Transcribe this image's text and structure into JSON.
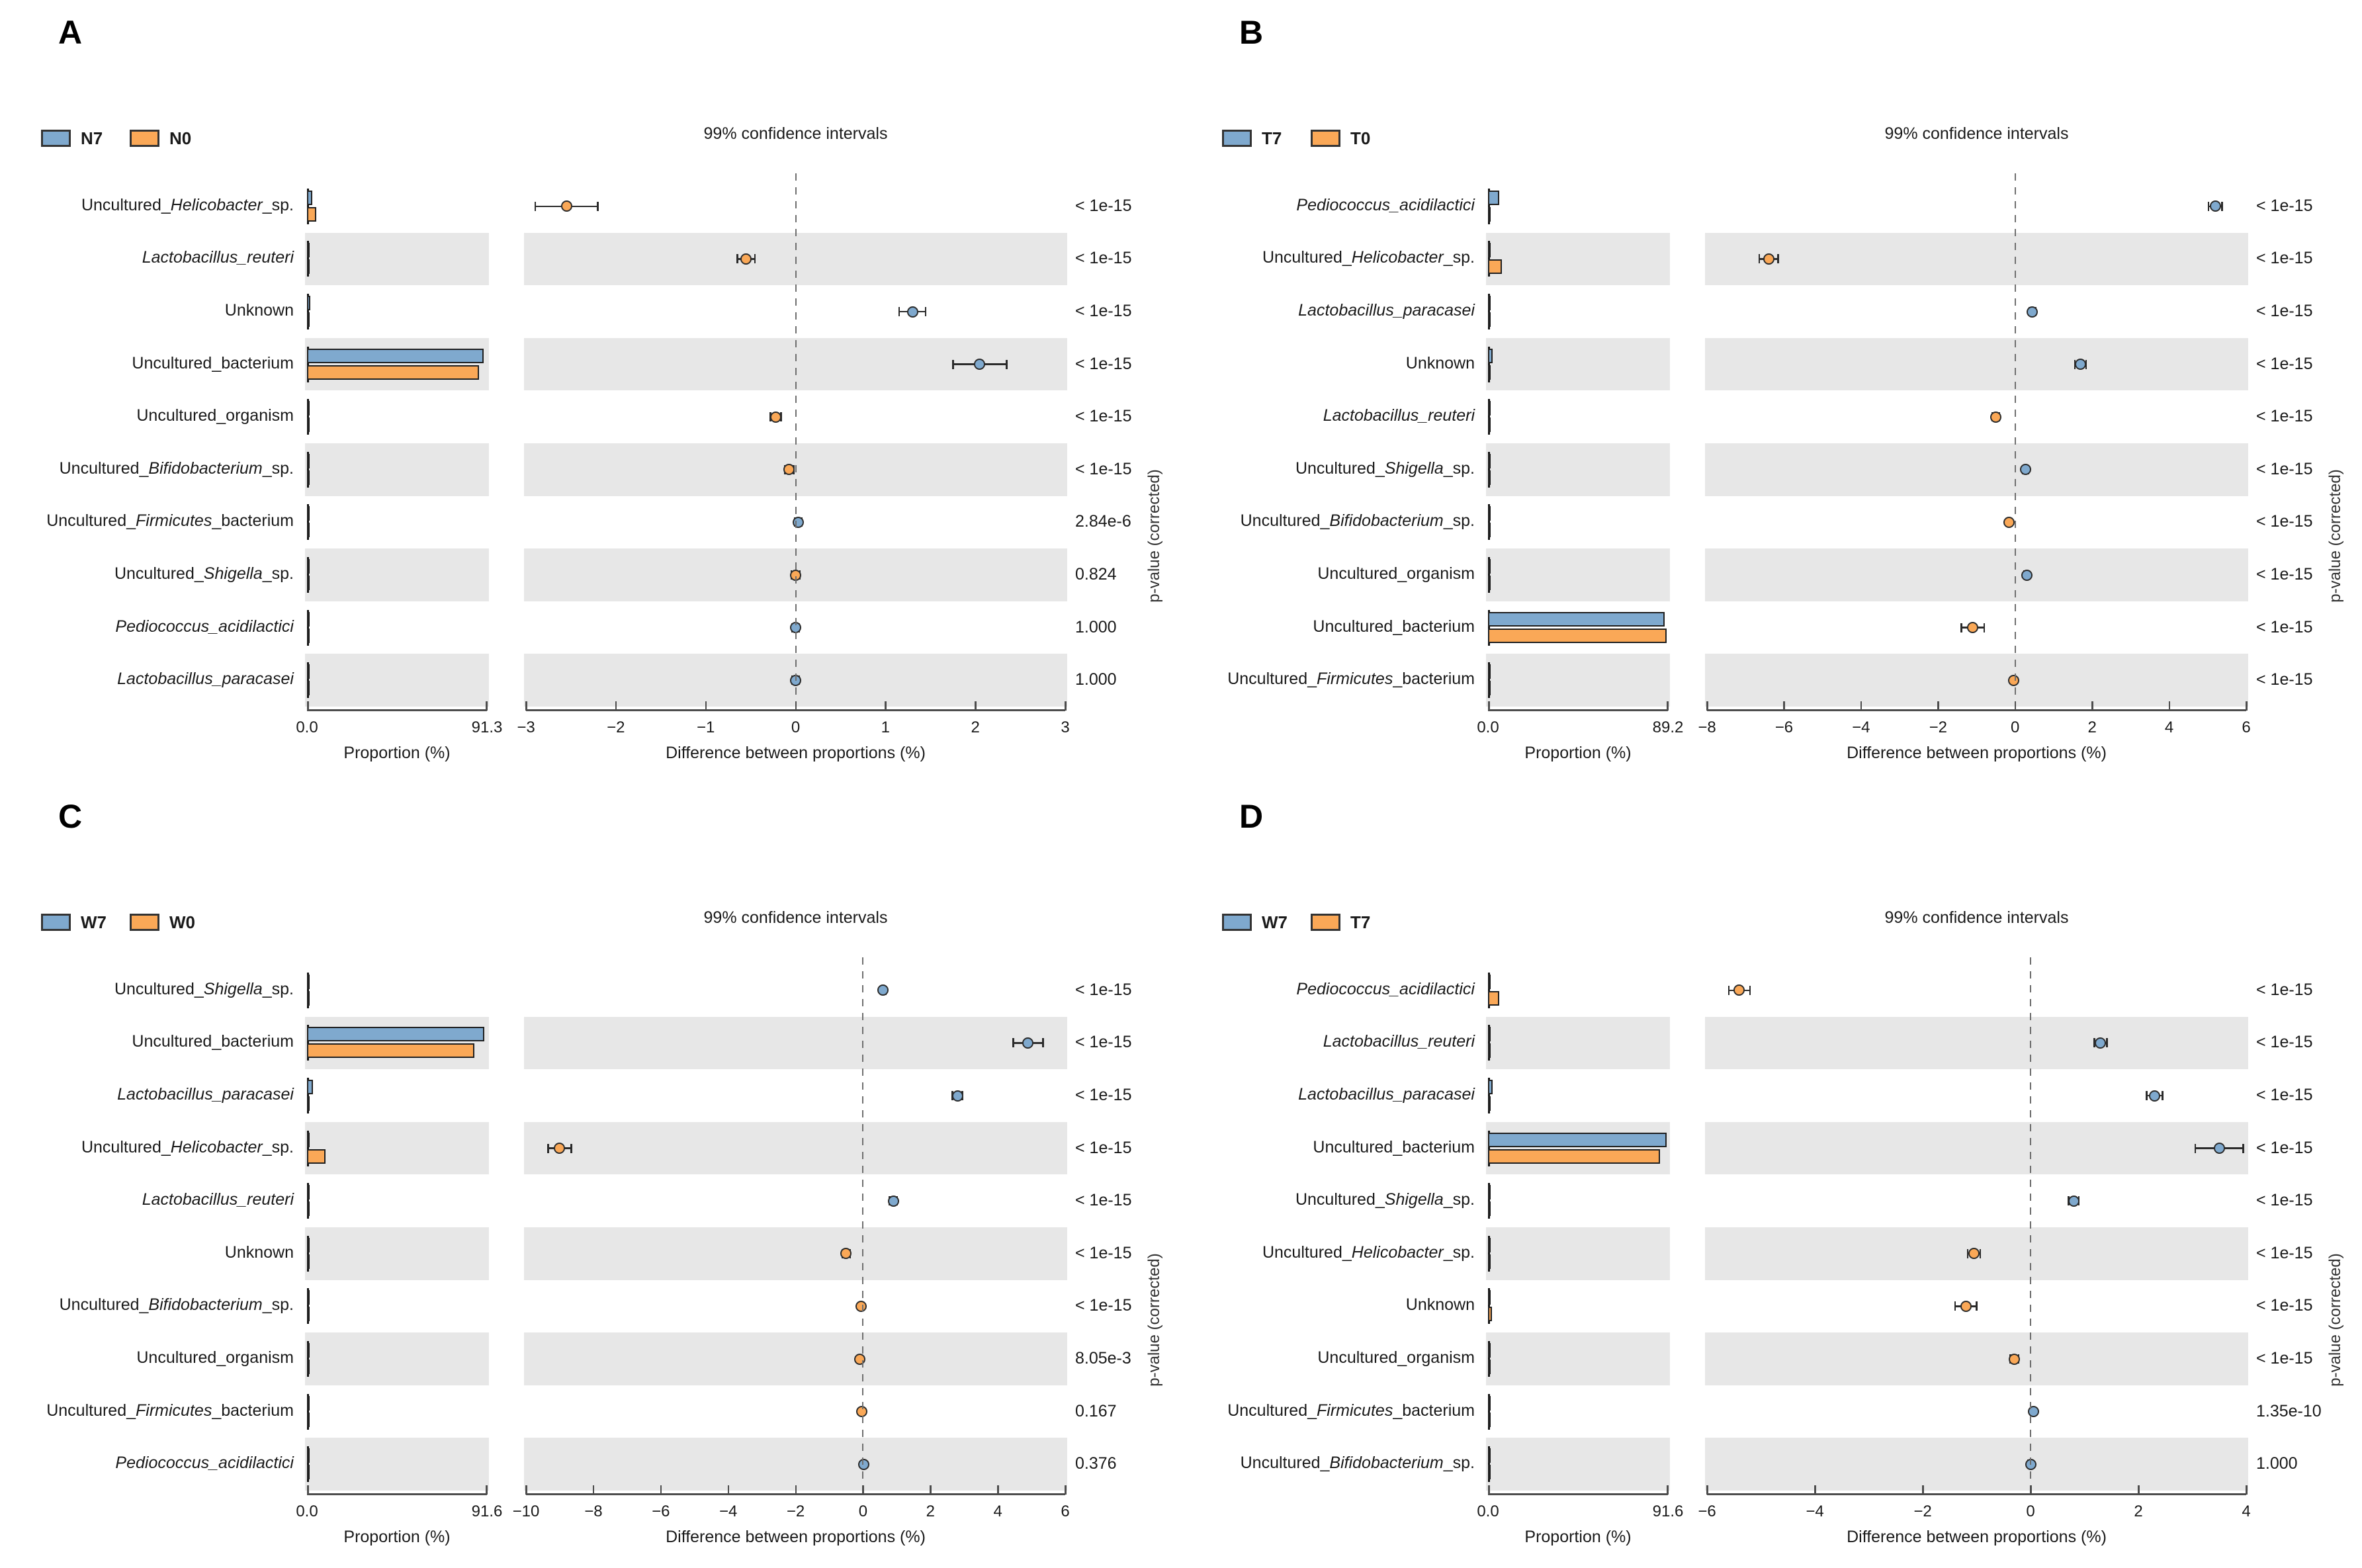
{
  "colors": {
    "blue": "#7FA9CE",
    "orange": "#FAA857",
    "band": "#E7E7E7",
    "axis": "#4D4D4D",
    "text": "#1A1A1A"
  },
  "chart_data": [
    {
      "type": "extended-error-bar",
      "panel_label": "A",
      "legend": [
        "N7",
        "N0"
      ],
      "ci_title": "99% confidence intervals",
      "prop_axis": {
        "ticks": [
          "0.0",
          "91.3"
        ],
        "max": 91.3,
        "title": "Proportion (%)"
      },
      "diff_axis": {
        "min": -3,
        "max": 3,
        "ticks": [
          -3,
          -2,
          -1,
          0,
          1,
          2,
          3
        ],
        "title": "Difference between proportions (%)"
      },
      "right_axis_label": "p-value (corrected)",
      "rows": [
        {
          "taxon": [
            [
              "Uncultured_",
              false
            ],
            [
              "Helicobacter",
              true
            ],
            [
              "_sp.",
              false
            ]
          ],
          "proportions": [
            2.8,
            4.6
          ],
          "diff": -2.55,
          "ci": 0.35,
          "dot": "orange",
          "p": "< 1e-15"
        },
        {
          "taxon": [
            [
              "Lactobacillus_reuteri",
              true
            ]
          ],
          "proportions": [
            0.4,
            0.9
          ],
          "diff": -0.55,
          "ci": 0.1,
          "dot": "orange",
          "p": "< 1e-15"
        },
        {
          "taxon": [
            [
              "Unknown",
              false
            ]
          ],
          "proportions": [
            1.6,
            0.35
          ],
          "diff": 1.3,
          "ci": 0.15,
          "dot": "blue",
          "p": "< 1e-15"
        },
        {
          "taxon": [
            [
              "Uncultured_bacterium",
              false
            ]
          ],
          "proportions": [
            89.5,
            87.4
          ],
          "diff": 2.05,
          "ci": 0.3,
          "dot": "blue",
          "p": "< 1e-15"
        },
        {
          "taxon": [
            [
              "Uncultured_organism",
              false
            ]
          ],
          "proportions": [
            0.3,
            0.5
          ],
          "diff": -0.22,
          "ci": 0.06,
          "dot": "orange",
          "p": "< 1e-15"
        },
        {
          "taxon": [
            [
              "Uncultured_",
              false
            ],
            [
              "Bifidobacterium",
              true
            ],
            [
              "_sp.",
              false
            ]
          ],
          "proportions": [
            0.25,
            0.32
          ],
          "diff": -0.07,
          "ci": 0.05,
          "dot": "orange",
          "p": "< 1e-15"
        },
        {
          "taxon": [
            [
              "Uncultured_",
              false
            ],
            [
              "Firmicutes",
              true
            ],
            [
              "_bacterium",
              false
            ]
          ],
          "proportions": [
            0.3,
            0.27
          ],
          "diff": 0.03,
          "ci": 0.04,
          "dot": "blue",
          "p": "2.84e-6"
        },
        {
          "taxon": [
            [
              "Uncultured_",
              false
            ],
            [
              "Shigella",
              true
            ],
            [
              "_sp.",
              false
            ]
          ],
          "proportions": [
            0.35,
            0.35
          ],
          "diff": 0.0,
          "ci": 0.05,
          "dot": "orange",
          "p": "0.824"
        },
        {
          "taxon": [
            [
              "Pediococcus_acidilactici",
              true
            ]
          ],
          "proportions": [
            0.3,
            0.3
          ],
          "diff": 0.0,
          "ci": 0.04,
          "dot": "blue",
          "p": "1.000"
        },
        {
          "taxon": [
            [
              "Lactobacillus_paracasei",
              true
            ]
          ],
          "proportions": [
            0.35,
            0.33
          ],
          "diff": 0.0,
          "ci": 0.04,
          "dot": "blue",
          "p": "1.000"
        }
      ]
    },
    {
      "type": "extended-error-bar",
      "panel_label": "B",
      "legend": [
        "T7",
        "T0"
      ],
      "ci_title": "99% confidence intervals",
      "prop_axis": {
        "ticks": [
          "0.0",
          "89.2"
        ],
        "max": 89.2,
        "title": "Proportion (%)"
      },
      "diff_axis": {
        "min": -8,
        "max": 6,
        "ticks": [
          -8,
          -6,
          -4,
          -2,
          0,
          2,
          4,
          6
        ],
        "title": "Difference between proportions (%)"
      },
      "right_axis_label": "p-value (corrected)",
      "rows": [
        {
          "taxon": [
            [
              "Pediococcus_acidilactici",
              true
            ]
          ],
          "proportions": [
            5.5,
            0.3
          ],
          "diff": 5.2,
          "ci": 0.18,
          "dot": "blue",
          "p": "< 1e-15"
        },
        {
          "taxon": [
            [
              "Uncultured_",
              false
            ],
            [
              "Helicobacter",
              true
            ],
            [
              "_sp.",
              false
            ]
          ],
          "proportions": [
            0.6,
            7.0
          ],
          "diff": -6.4,
          "ci": 0.25,
          "dot": "orange",
          "p": "< 1e-15"
        },
        {
          "taxon": [
            [
              "Lactobacillus_paracasei",
              true
            ]
          ],
          "proportions": [
            0.6,
            0.15
          ],
          "diff": 0.45,
          "ci": 0.08,
          "dot": "blue",
          "p": "< 1e-15"
        },
        {
          "taxon": [
            [
              "Unknown",
              false
            ]
          ],
          "proportions": [
            2.3,
            0.6
          ],
          "diff": 1.7,
          "ci": 0.15,
          "dot": "blue",
          "p": "< 1e-15"
        },
        {
          "taxon": [
            [
              "Lactobacillus_reuteri",
              true
            ]
          ],
          "proportions": [
            0.3,
            0.8
          ],
          "diff": -0.5,
          "ci": 0.1,
          "dot": "orange",
          "p": "< 1e-15"
        },
        {
          "taxon": [
            [
              "Uncultured_",
              false
            ],
            [
              "Shigella",
              true
            ],
            [
              "_sp.",
              false
            ]
          ],
          "proportions": [
            0.5,
            0.25
          ],
          "diff": 0.27,
          "ci": 0.07,
          "dot": "blue",
          "p": "< 1e-15"
        },
        {
          "taxon": [
            [
              "Uncultured_",
              false
            ],
            [
              "Bifidobacterium",
              true
            ],
            [
              "_sp.",
              false
            ]
          ],
          "proportions": [
            0.2,
            0.35
          ],
          "diff": -0.15,
          "ci": 0.05,
          "dot": "orange",
          "p": "< 1e-15"
        },
        {
          "taxon": [
            [
              "Uncultured_organism",
              false
            ]
          ],
          "proportions": [
            0.55,
            0.25
          ],
          "diff": 0.3,
          "ci": 0.07,
          "dot": "blue",
          "p": "< 1e-15"
        },
        {
          "taxon": [
            [
              "Uncultured_bacterium",
              false
            ]
          ],
          "proportions": [
            87.6,
            88.7
          ],
          "diff": -1.1,
          "ci": 0.3,
          "dot": "orange",
          "p": "< 1e-15"
        },
        {
          "taxon": [
            [
              "Uncultured_",
              false
            ],
            [
              "Firmicutes",
              true
            ],
            [
              "_bacterium",
              false
            ]
          ],
          "proportions": [
            0.3,
            0.33
          ],
          "diff": -0.04,
          "ci": 0.05,
          "dot": "orange",
          "p": "< 1e-15"
        }
      ]
    },
    {
      "type": "extended-error-bar",
      "panel_label": "C",
      "legend": [
        "W7",
        "W0"
      ],
      "ci_title": "99% confidence intervals",
      "prop_axis": {
        "ticks": [
          "0.0",
          "91.6"
        ],
        "max": 91.6,
        "title": "Proportion (%)"
      },
      "diff_axis": {
        "min": -10,
        "max": 6,
        "ticks": [
          -10,
          -8,
          -6,
          -4,
          -2,
          0,
          2,
          4,
          6
        ],
        "title": "Difference between proportions (%)"
      },
      "right_axis_label": "p-value (corrected)",
      "rows": [
        {
          "taxon": [
            [
              "Uncultured_",
              false
            ],
            [
              "Shigella",
              true
            ],
            [
              "_sp.",
              false
            ]
          ],
          "proportions": [
            0.75,
            0.15
          ],
          "diff": 0.6,
          "ci": 0.08,
          "dot": "blue",
          "p": "< 1e-15"
        },
        {
          "taxon": [
            [
              "Uncultured_bacterium",
              false
            ]
          ],
          "proportions": [
            90.2,
            85.3
          ],
          "diff": 4.9,
          "ci": 0.45,
          "dot": "blue",
          "p": "< 1e-15"
        },
        {
          "taxon": [
            [
              "Lactobacillus_paracasei",
              true
            ]
          ],
          "proportions": [
            2.9,
            0.1
          ],
          "diff": 2.8,
          "ci": 0.15,
          "dot": "blue",
          "p": "< 1e-15"
        },
        {
          "taxon": [
            [
              "Uncultured_",
              false
            ],
            [
              "Helicobacter",
              true
            ],
            [
              "_sp.",
              false
            ]
          ],
          "proportions": [
            0.4,
            9.4
          ],
          "diff": -9.0,
          "ci": 0.35,
          "dot": "orange",
          "p": "< 1e-15"
        },
        {
          "taxon": [
            [
              "Lactobacillus_reuteri",
              true
            ]
          ],
          "proportions": [
            1.1,
            0.2
          ],
          "diff": 0.9,
          "ci": 0.12,
          "dot": "blue",
          "p": "< 1e-15"
        },
        {
          "taxon": [
            [
              "Unknown",
              false
            ]
          ],
          "proportions": [
            0.7,
            1.2
          ],
          "diff": -0.5,
          "ci": 0.12,
          "dot": "orange",
          "p": "< 1e-15"
        },
        {
          "taxon": [
            [
              "Uncultured_",
              false
            ],
            [
              "Bifidobacterium",
              true
            ],
            [
              "_sp.",
              false
            ]
          ],
          "proportions": [
            0.2,
            0.26
          ],
          "diff": -0.06,
          "ci": 0.05,
          "dot": "orange",
          "p": "< 1e-15"
        },
        {
          "taxon": [
            [
              "Uncultured_organism",
              false
            ]
          ],
          "proportions": [
            0.25,
            0.35
          ],
          "diff": -0.1,
          "ci": 0.06,
          "dot": "orange",
          "p": "8.05e-3"
        },
        {
          "taxon": [
            [
              "Uncultured_",
              false
            ],
            [
              "Firmicutes",
              true
            ],
            [
              "_bacterium",
              false
            ]
          ],
          "proportions": [
            0.3,
            0.33
          ],
          "diff": -0.03,
          "ci": 0.05,
          "dot": "orange",
          "p": "0.167"
        },
        {
          "taxon": [
            [
              "Pediococcus_acidilactici",
              true
            ]
          ],
          "proportions": [
            0.3,
            0.28
          ],
          "diff": 0.02,
          "ci": 0.05,
          "dot": "blue",
          "p": "0.376"
        }
      ]
    },
    {
      "type": "extended-error-bar",
      "panel_label": "D",
      "legend": [
        "W7",
        "T7"
      ],
      "ci_title": "99% confidence intervals",
      "prop_axis": {
        "ticks": [
          "0.0",
          "91.6"
        ],
        "max": 91.6,
        "title": "Proportion (%)"
      },
      "diff_axis": {
        "min": -6,
        "max": 4,
        "ticks": [
          -6,
          -4,
          -2,
          0,
          2,
          4
        ],
        "title": "Difference between proportions (%)"
      },
      "right_axis_label": "p-value (corrected)",
      "rows": [
        {
          "taxon": [
            [
              "Pediococcus_acidilactici",
              true
            ]
          ],
          "proportions": [
            0.15,
            5.6
          ],
          "diff": -5.4,
          "ci": 0.2,
          "dot": "orange",
          "p": "< 1e-15"
        },
        {
          "taxon": [
            [
              "Lactobacillus_reuteri",
              true
            ]
          ],
          "proportions": [
            1.4,
            0.1
          ],
          "diff": 1.3,
          "ci": 0.12,
          "dot": "blue",
          "p": "< 1e-15"
        },
        {
          "taxon": [
            [
              "Lactobacillus_paracasei",
              true
            ]
          ],
          "proportions": [
            2.5,
            0.2
          ],
          "diff": 2.3,
          "ci": 0.15,
          "dot": "blue",
          "p": "< 1e-15"
        },
        {
          "taxon": [
            [
              "Uncultured_bacterium",
              false
            ]
          ],
          "proportions": [
            91.0,
            87.5
          ],
          "diff": 3.5,
          "ci": 0.45,
          "dot": "blue",
          "p": "< 1e-15"
        },
        {
          "taxon": [
            [
              "Uncultured_",
              false
            ],
            [
              "Shigella",
              true
            ],
            [
              "_sp.",
              false
            ]
          ],
          "proportions": [
            0.9,
            0.1
          ],
          "diff": 0.8,
          "ci": 0.1,
          "dot": "blue",
          "p": "< 1e-15"
        },
        {
          "taxon": [
            [
              "Uncultured_",
              false
            ],
            [
              "Helicobacter",
              true
            ],
            [
              "_sp.",
              false
            ]
          ],
          "proportions": [
            0.15,
            1.2
          ],
          "diff": -1.05,
          "ci": 0.12,
          "dot": "orange",
          "p": "< 1e-15"
        },
        {
          "taxon": [
            [
              "Unknown",
              false
            ]
          ],
          "proportions": [
            0.7,
            1.9
          ],
          "diff": -1.2,
          "ci": 0.2,
          "dot": "orange",
          "p": "< 1e-15"
        },
        {
          "taxon": [
            [
              "Uncultured_organism",
              false
            ]
          ],
          "proportions": [
            0.25,
            0.55
          ],
          "diff": -0.3,
          "ci": 0.08,
          "dot": "orange",
          "p": "< 1e-15"
        },
        {
          "taxon": [
            [
              "Uncultured_",
              false
            ],
            [
              "Firmicutes",
              true
            ],
            [
              "_bacterium",
              false
            ]
          ],
          "proportions": [
            0.35,
            0.3
          ],
          "diff": 0.05,
          "ci": 0.05,
          "dot": "blue",
          "p": "1.35e-10"
        },
        {
          "taxon": [
            [
              "Uncultured_",
              false
            ],
            [
              "Bifidobacterium",
              true
            ],
            [
              "_sp.",
              false
            ]
          ],
          "proportions": [
            0.25,
            0.25
          ],
          "diff": 0.0,
          "ci": 0.05,
          "dot": "blue",
          "p": "1.000"
        }
      ]
    }
  ]
}
